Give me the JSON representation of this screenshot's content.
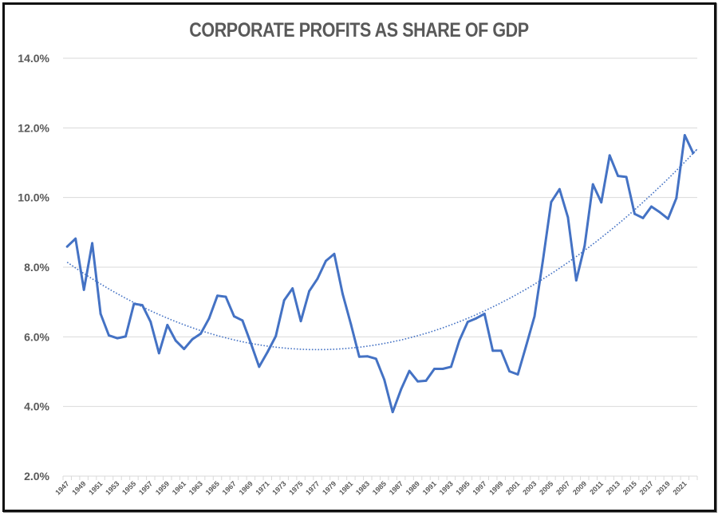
{
  "chart_data": {
    "type": "line",
    "title": "CORPORATE PROFITS AS SHARE OF GDP",
    "xlabel": "",
    "ylabel": "",
    "ylim": [
      2.0,
      14.0
    ],
    "y_ticks": [
      "2.0%",
      "4.0%",
      "6.0%",
      "8.0%",
      "10.0%",
      "12.0%",
      "14.0%"
    ],
    "y_tick_values": [
      2,
      4,
      6,
      8,
      10,
      12,
      14
    ],
    "grid": true,
    "legend": "none",
    "x": [
      1947,
      1948,
      1949,
      1950,
      1951,
      1952,
      1953,
      1954,
      1955,
      1956,
      1957,
      1958,
      1959,
      1960,
      1961,
      1962,
      1963,
      1964,
      1965,
      1966,
      1967,
      1968,
      1969,
      1970,
      1971,
      1972,
      1973,
      1974,
      1975,
      1976,
      1977,
      1978,
      1979,
      1980,
      1981,
      1982,
      1983,
      1984,
      1985,
      1986,
      1987,
      1988,
      1989,
      1990,
      1991,
      1992,
      1993,
      1994,
      1995,
      1996,
      1997,
      1998,
      1999,
      2000,
      2001,
      2002,
      2003,
      2004,
      2005,
      2006,
      2007,
      2008,
      2009,
      2010,
      2011,
      2012,
      2013,
      2014,
      2015,
      2016,
      2017,
      2018,
      2019,
      2020,
      2021,
      2022
    ],
    "x_tick_labels": [
      "1947",
      "1949",
      "1951",
      "1953",
      "1955",
      "1957",
      "1959",
      "1961",
      "1963",
      "1965",
      "1967",
      "1969",
      "1971",
      "1973",
      "1975",
      "1977",
      "1979",
      "1981",
      "1983",
      "1985",
      "1987",
      "1989",
      "1991",
      "1993",
      "1995",
      "1997",
      "1999",
      "2001",
      "2003",
      "2005",
      "2007",
      "2009",
      "2011",
      "2013",
      "2015",
      "2017",
      "2019",
      "2021"
    ],
    "series": [
      {
        "name": "Corporate profits as share of GDP",
        "color": "#4472C4",
        "values": [
          8.59,
          8.82,
          7.35,
          8.69,
          6.66,
          6.04,
          5.96,
          6.01,
          6.95,
          6.91,
          6.43,
          5.53,
          6.34,
          5.89,
          5.65,
          5.93,
          6.09,
          6.53,
          7.18,
          7.15,
          6.59,
          6.47,
          5.82,
          5.14,
          5.56,
          6.02,
          7.05,
          7.39,
          6.45,
          7.31,
          7.67,
          8.18,
          8.38,
          7.24,
          6.36,
          5.43,
          5.44,
          5.37,
          4.77,
          3.84,
          4.49,
          5.02,
          4.72,
          4.74,
          5.08,
          5.08,
          5.14,
          5.9,
          6.43,
          6.53,
          6.66,
          5.6,
          5.6,
          5.01,
          4.92,
          5.75,
          6.59,
          8.19,
          9.87,
          10.24,
          9.43,
          7.62,
          8.61,
          10.38,
          9.86,
          11.21,
          10.62,
          10.59,
          9.53,
          9.41,
          9.74,
          9.58,
          9.39,
          9.98,
          11.79,
          11.28
        ]
      }
    ],
    "trendline": {
      "type": "polynomial",
      "order": 2,
      "style": "dotted",
      "color": "#4472C4"
    }
  }
}
